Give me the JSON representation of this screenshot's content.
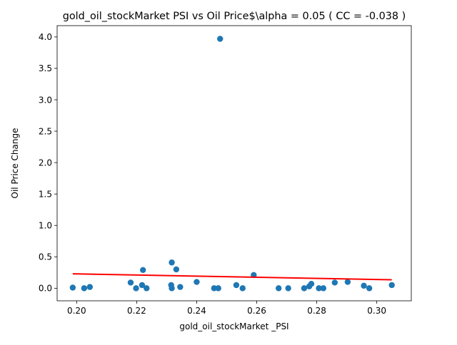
{
  "chart_data": {
    "type": "scatter",
    "title": "gold_oil_stockMarket  PSI vs Oil Price$\\alpha = 0.05 ( CC = -0.038 )",
    "xlabel": "gold_oil_stockMarket _PSI",
    "ylabel": "Oil Price Change",
    "xlim": [
      0.1935,
      0.3115
    ],
    "ylim": [
      -0.2,
      4.18
    ],
    "xticks": [
      0.2,
      0.22,
      0.24,
      0.26,
      0.28,
      0.3
    ],
    "xtick_labels": [
      "0.20",
      "0.22",
      "0.24",
      "0.26",
      "0.28",
      "0.30"
    ],
    "yticks": [
      0.0,
      0.5,
      1.0,
      1.5,
      2.0,
      2.5,
      3.0,
      3.5,
      4.0
    ],
    "ytick_labels": [
      "0.0",
      "0.5",
      "1.0",
      "1.5",
      "2.0",
      "2.5",
      "3.0",
      "3.5",
      "4.0"
    ],
    "grid": false,
    "marker_color": "#1f77b4",
    "fit_color": "#ff0000",
    "points": [
      {
        "x": 0.1987,
        "y": 0.01
      },
      {
        "x": 0.2025,
        "y": 0.0
      },
      {
        "x": 0.2044,
        "y": 0.02
      },
      {
        "x": 0.218,
        "y": 0.09
      },
      {
        "x": 0.2198,
        "y": 0.0
      },
      {
        "x": 0.2218,
        "y": 0.05
      },
      {
        "x": 0.2221,
        "y": 0.29
      },
      {
        "x": 0.2233,
        "y": 0.0
      },
      {
        "x": 0.2315,
        "y": 0.05
      },
      {
        "x": 0.2317,
        "y": 0.0
      },
      {
        "x": 0.2317,
        "y": 0.41
      },
      {
        "x": 0.2332,
        "y": 0.3
      },
      {
        "x": 0.2345,
        "y": 0.02
      },
      {
        "x": 0.24,
        "y": 0.1
      },
      {
        "x": 0.2458,
        "y": 0.0
      },
      {
        "x": 0.2472,
        "y": 0.0
      },
      {
        "x": 0.2478,
        "y": 3.97
      },
      {
        "x": 0.2532,
        "y": 0.05
      },
      {
        "x": 0.2553,
        "y": 0.0
      },
      {
        "x": 0.259,
        "y": 0.21
      },
      {
        "x": 0.2673,
        "y": 0.0
      },
      {
        "x": 0.2705,
        "y": 0.0
      },
      {
        "x": 0.2758,
        "y": 0.0
      },
      {
        "x": 0.2775,
        "y": 0.03
      },
      {
        "x": 0.2782,
        "y": 0.07
      },
      {
        "x": 0.2807,
        "y": 0.0
      },
      {
        "x": 0.2822,
        "y": 0.0
      },
      {
        "x": 0.286,
        "y": 0.09
      },
      {
        "x": 0.2903,
        "y": 0.1
      },
      {
        "x": 0.2957,
        "y": 0.04
      },
      {
        "x": 0.2975,
        "y": 0.0
      },
      {
        "x": 0.305,
        "y": 0.05
      }
    ],
    "fit_line": {
      "x": [
        0.1987,
        0.305
      ],
      "y": [
        0.23,
        0.135
      ]
    }
  }
}
